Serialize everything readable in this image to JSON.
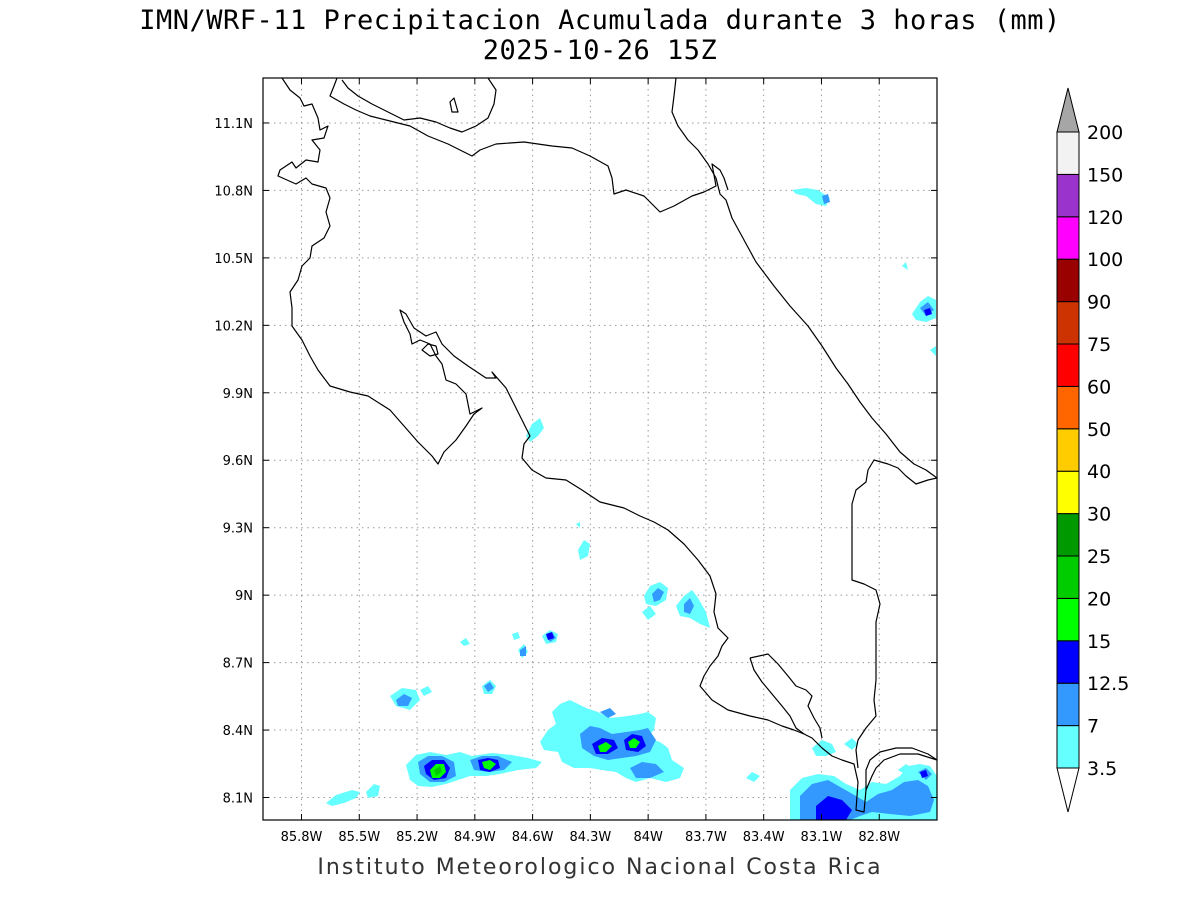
{
  "title": {
    "line1": "IMN/WRF-11 Precipitacion Acumulada durante 3 horas (mm)",
    "line2": "2025-10-26 15Z"
  },
  "credit": "Instituto Meteorologico Nacional Costa Rica",
  "map": {
    "lon_range": [
      -86.0,
      -82.5
    ],
    "lat_range": [
      8.0,
      11.3
    ],
    "lon_ticks": [
      {
        "value": -85.8,
        "label": "85.8W"
      },
      {
        "value": -85.5,
        "label": "85.5W"
      },
      {
        "value": -85.2,
        "label": "85.2W"
      },
      {
        "value": -84.9,
        "label": "84.9W"
      },
      {
        "value": -84.6,
        "label": "84.6W"
      },
      {
        "value": -84.3,
        "label": "84.3W"
      },
      {
        "value": -84.0,
        "label": "84W"
      },
      {
        "value": -83.7,
        "label": "83.7W"
      },
      {
        "value": -83.4,
        "label": "83.4W"
      },
      {
        "value": -83.1,
        "label": "83.1W"
      },
      {
        "value": -82.8,
        "label": "82.8W"
      }
    ],
    "lat_ticks": [
      {
        "value": 8.1,
        "label": "8.1N"
      },
      {
        "value": 8.4,
        "label": "8.4N"
      },
      {
        "value": 8.7,
        "label": "8.7N"
      },
      {
        "value": 9.0,
        "label": "9N"
      },
      {
        "value": 9.3,
        "label": "9.3N"
      },
      {
        "value": 9.6,
        "label": "9.6N"
      },
      {
        "value": 9.9,
        "label": "9.9N"
      },
      {
        "value": 10.2,
        "label": "10.2N"
      },
      {
        "value": 10.5,
        "label": "10.5N"
      },
      {
        "value": 10.8,
        "label": "10.8N"
      },
      {
        "value": 11.1,
        "label": "11.1N"
      }
    ],
    "grid": true,
    "coastline_color": "#000000"
  },
  "legend": {
    "position": "right",
    "levels": [
      {
        "label": "3.5",
        "color": "#66ffff"
      },
      {
        "label": "7",
        "color": "#3399ff"
      },
      {
        "label": "12.5",
        "color": "#0000ff"
      },
      {
        "label": "15",
        "color": "#00ff00"
      },
      {
        "label": "20",
        "color": "#00cc00"
      },
      {
        "label": "25",
        "color": "#009900"
      },
      {
        "label": "30",
        "color": "#ffff00"
      },
      {
        "label": "40",
        "color": "#ffcc00"
      },
      {
        "label": "50",
        "color": "#ff6600"
      },
      {
        "label": "60",
        "color": "#ff0000"
      },
      {
        "label": "75",
        "color": "#cc3300"
      },
      {
        "label": "90",
        "color": "#990000"
      },
      {
        "label": "100",
        "color": "#ff00ff"
      },
      {
        "label": "120",
        "color": "#9933cc"
      },
      {
        "label": "150",
        "color": "#f2f2f2"
      },
      {
        "label": "200",
        "color": ""
      }
    ],
    "below_color": "#ffffff",
    "above_color": "#a6a6a6"
  }
}
